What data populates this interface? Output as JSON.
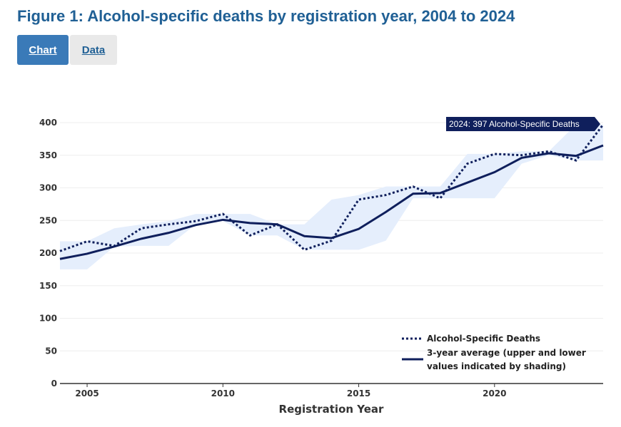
{
  "title": "Figure 1: Alcohol-specific deaths by registration year, 2004 to 2024",
  "tabs": [
    {
      "label": "Chart",
      "active": true
    },
    {
      "label": "Data",
      "active": false
    }
  ],
  "colors": {
    "line": "#0f1f5c",
    "shade": "#e5eefc",
    "title": "#206095",
    "active_tab": "#3a7ab8"
  },
  "chart_data": {
    "type": "line",
    "xlabel": "Registration Year",
    "ylabel": "",
    "xlim": [
      2004,
      2024
    ],
    "ylim": [
      0,
      400
    ],
    "x_ticks": [
      2005,
      2010,
      2015,
      2020
    ],
    "y_ticks": [
      0,
      50,
      100,
      150,
      200,
      250,
      300,
      350,
      400
    ],
    "grid": true,
    "legend_position": "bottom-right",
    "x": [
      2004,
      2005,
      2006,
      2007,
      2008,
      2009,
      2010,
      2011,
      2012,
      2013,
      2014,
      2015,
      2016,
      2017,
      2018,
      2019,
      2020,
      2021,
      2022,
      2023,
      2024
    ],
    "series": [
      {
        "name": "Alcohol-Specific Deaths",
        "style": "dotted",
        "values": [
          203,
          218,
          211,
          238,
          244,
          249,
          260,
          227,
          244,
          205,
          219,
          282,
          289,
          302,
          284,
          337,
          352,
          350,
          356,
          342,
          397
        ]
      },
      {
        "name": "3-year average (upper and lower values indicated by shading)",
        "legend_lines": [
          "3-year average (upper and lower",
          "values indicated by shading)"
        ],
        "style": "solid",
        "values": [
          191,
          199,
          210,
          222,
          231,
          243,
          251,
          246,
          244,
          226,
          223,
          237,
          263,
          291,
          292,
          308,
          324,
          346,
          353,
          349,
          365
        ],
        "lower": [
          175,
          175,
          210,
          211,
          211,
          244,
          249,
          227,
          227,
          205,
          205,
          205,
          219,
          284,
          284,
          284,
          284,
          337,
          350,
          342,
          342
        ],
        "upper": [
          218,
          218,
          238,
          244,
          249,
          260,
          260,
          260,
          244,
          244,
          282,
          289,
          302,
          302,
          302,
          352,
          352,
          356,
          356,
          397,
          397
        ]
      }
    ],
    "annotation": "2024: 397 Alcohol-Specific Deaths"
  }
}
